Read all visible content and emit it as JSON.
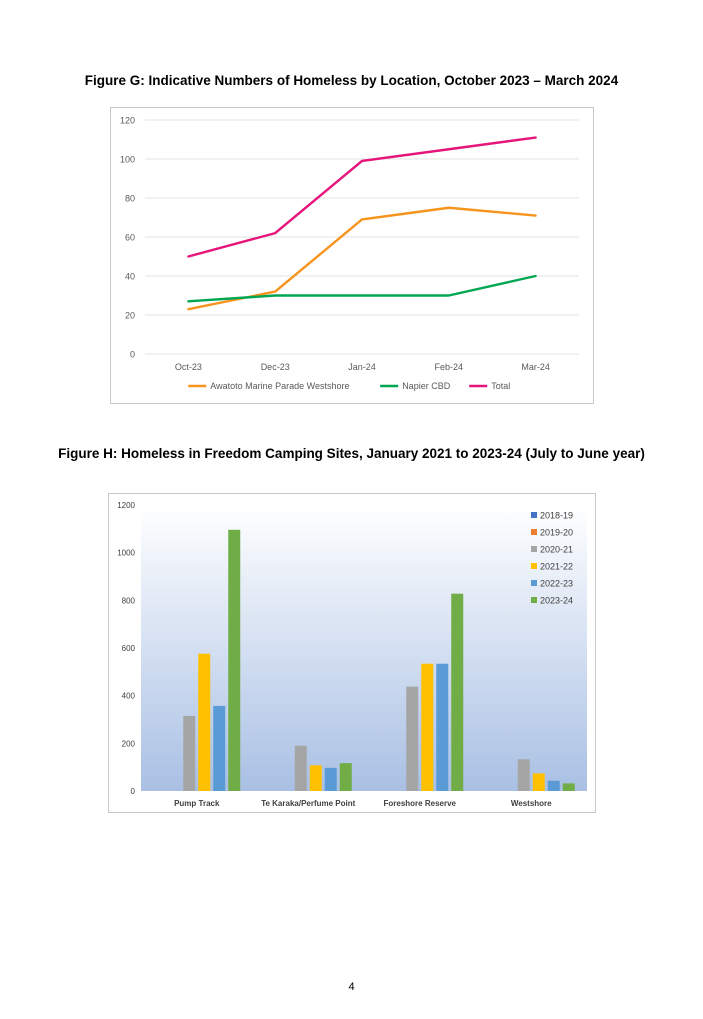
{
  "page": {
    "number": "4"
  },
  "chart_data": [
    {
      "id": "figure-g",
      "type": "line",
      "title": "Figure G: Indicative Numbers of Homeless by Location, October 2023 – March 2024",
      "categories": [
        "Oct-23",
        "Dec-23",
        "Jan-24",
        "Feb-24",
        "Mar-24"
      ],
      "series": [
        {
          "name": "Awatoto Marine Parade Westshore",
          "color": "#f7941d",
          "values": [
            23,
            32,
            69,
            75,
            71
          ]
        },
        {
          "name": "Napier CBD",
          "color": "#00a651",
          "values": [
            27,
            30,
            30,
            30,
            40
          ]
        },
        {
          "name": "Total",
          "color": "#e6157b",
          "values": [
            50,
            62,
            99,
            105,
            111
          ]
        }
      ],
      "ylim": [
        0,
        120
      ],
      "yticks": [
        0,
        20,
        40,
        60,
        80,
        100,
        120
      ],
      "grid": true,
      "legend": "bottom"
    },
    {
      "id": "figure-h",
      "type": "bar",
      "title": "Figure H: Homeless in Freedom Camping Sites, January 2021 to 2023-24 (July to June year)",
      "categories": [
        "Pump Track",
        "Te Karaka/Perfume Point",
        "Foreshore Reserve",
        "Westshore"
      ],
      "series": [
        {
          "name": "2018-19",
          "color": "#4472c4",
          "values": [
            null,
            null,
            null,
            null
          ]
        },
        {
          "name": "2019-20",
          "color": "#ed7d31",
          "values": [
            null,
            null,
            null,
            null
          ]
        },
        {
          "name": "2020-21",
          "color": "#a5a5a5",
          "values": [
            315,
            190,
            438,
            133
          ]
        },
        {
          "name": "2021-22",
          "color": "#ffc000",
          "values": [
            576,
            108,
            534,
            74
          ]
        },
        {
          "name": "2022-23",
          "color": "#5b9bd5",
          "values": [
            357,
            97,
            534,
            43
          ]
        },
        {
          "name": "2023-24",
          "color": "#70ad47",
          "values": [
            1096,
            117,
            828,
            32
          ]
        }
      ],
      "ylim": [
        0,
        1200
      ],
      "yticks": [
        0,
        200,
        400,
        600,
        800,
        1000,
        1200
      ],
      "grid": false,
      "legend": "top-right"
    }
  ]
}
